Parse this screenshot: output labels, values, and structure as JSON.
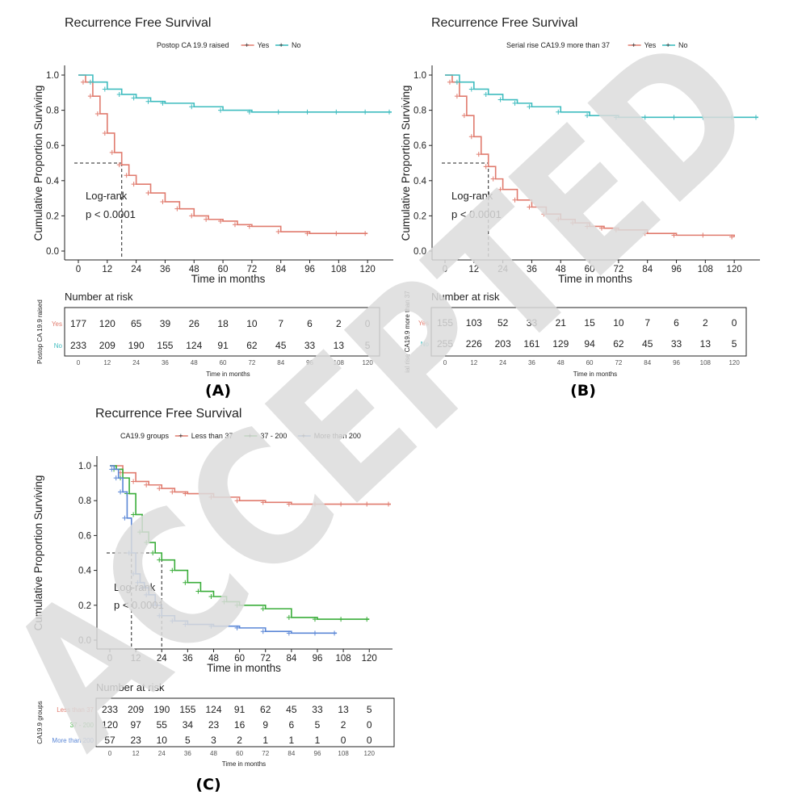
{
  "watermark": "ACCEPTED",
  "chart_data": [
    {
      "type": "line",
      "panel_label": "(A)",
      "title": "Recurrence Free Survival",
      "legend_title": "Postop CA 19.9 raised",
      "xlabel": "Time in months",
      "ylabel": "Cumulative Proportion Surviving",
      "xlim": [
        0,
        130
      ],
      "ylim": [
        0,
        1.0
      ],
      "xticks": [
        0,
        12,
        24,
        36,
        48,
        60,
        72,
        84,
        96,
        108,
        120
      ],
      "yticks": [
        "0.0",
        "0.2",
        "0.4",
        "0.6",
        "0.8",
        "1.0"
      ],
      "annotation": [
        "Log-rank",
        "p < 0.0001"
      ],
      "median_lines": [
        {
          "x": 18,
          "y": 0.5
        }
      ],
      "series": [
        {
          "name": "Yes",
          "color": "#e07b6e",
          "x": [
            0,
            3,
            6,
            9,
            12,
            15,
            18,
            21,
            24,
            30,
            36,
            42,
            48,
            54,
            60,
            66,
            72,
            84,
            96,
            108,
            120
          ],
          "y": [
            1.0,
            0.96,
            0.88,
            0.78,
            0.67,
            0.56,
            0.49,
            0.43,
            0.38,
            0.33,
            0.28,
            0.24,
            0.2,
            0.18,
            0.17,
            0.15,
            0.14,
            0.11,
            0.1,
            0.1,
            0.1
          ]
        },
        {
          "name": "No",
          "color": "#3fbcbf",
          "x": [
            0,
            6,
            12,
            18,
            24,
            30,
            36,
            48,
            60,
            72,
            84,
            96,
            108,
            120,
            130
          ],
          "y": [
            1.0,
            0.96,
            0.92,
            0.89,
            0.87,
            0.85,
            0.84,
            0.82,
            0.8,
            0.79,
            0.79,
            0.79,
            0.79,
            0.79,
            0.79
          ]
        }
      ],
      "risk_table": {
        "header": "Number at risk",
        "ylabel": "Postop CA 19.9 raised",
        "xlabel": "Time in months",
        "rows": [
          {
            "label": "Yes",
            "color": "#e07b6e",
            "values": [
              "177",
              "120",
              "65",
              "39",
              "26",
              "18",
              "10",
              "7",
              "6",
              "2",
              "0"
            ]
          },
          {
            "label": "No",
            "color": "#3fbcbf",
            "values": [
              "233",
              "209",
              "190",
              "155",
              "124",
              "91",
              "62",
              "45",
              "33",
              "13",
              "5"
            ]
          }
        ]
      }
    },
    {
      "type": "line",
      "panel_label": "(B)",
      "title": "Recurrence Free Survival",
      "legend_title": "Serial rise CA19.9 more than 37",
      "xlabel": "Time in months",
      "ylabel": "Cumulative Proportion Surviving",
      "xlim": [
        0,
        130
      ],
      "ylim": [
        0,
        1.0
      ],
      "xticks": [
        0,
        12,
        24,
        36,
        48,
        60,
        72,
        84,
        96,
        108,
        120
      ],
      "yticks": [
        "0.0",
        "0.2",
        "0.4",
        "0.6",
        "0.8",
        "1.0"
      ],
      "annotation": [
        "Log-rank",
        "p < 0.0001"
      ],
      "median_lines": [
        {
          "x": 18,
          "y": 0.5
        }
      ],
      "series": [
        {
          "name": "Yes",
          "color": "#e07b6e",
          "x": [
            0,
            3,
            6,
            9,
            12,
            15,
            18,
            21,
            24,
            30,
            36,
            42,
            48,
            54,
            60,
            66,
            72,
            84,
            96,
            108,
            120
          ],
          "y": [
            1.0,
            0.96,
            0.88,
            0.77,
            0.65,
            0.55,
            0.48,
            0.41,
            0.35,
            0.29,
            0.25,
            0.21,
            0.18,
            0.16,
            0.14,
            0.13,
            0.12,
            0.1,
            0.09,
            0.09,
            0.08
          ]
        },
        {
          "name": "No",
          "color": "#3fbcbf",
          "x": [
            0,
            6,
            12,
            18,
            24,
            30,
            36,
            48,
            60,
            72,
            84,
            96,
            108,
            120,
            130
          ],
          "y": [
            1.0,
            0.96,
            0.92,
            0.89,
            0.86,
            0.84,
            0.82,
            0.79,
            0.77,
            0.76,
            0.76,
            0.76,
            0.76,
            0.76,
            0.76
          ]
        }
      ],
      "risk_table": {
        "header": "Number at risk",
        "ylabel": "ial rise CA19.9 more than 37",
        "xlabel": "Time in months",
        "rows": [
          {
            "label": "Yes",
            "color": "#e07b6e",
            "values": [
              "155",
              "103",
              "52",
              "33",
              "21",
              "15",
              "10",
              "7",
              "6",
              "2",
              "0"
            ]
          },
          {
            "label": "No",
            "color": "#3fbcbf",
            "values": [
              "255",
              "226",
              "203",
              "161",
              "129",
              "94",
              "62",
              "45",
              "33",
              "13",
              "5"
            ]
          }
        ]
      }
    },
    {
      "type": "line",
      "panel_label": "(C)",
      "title": "Recurrence Free Survival",
      "legend_title": "CA19.9 groups",
      "xlabel": "Time in months",
      "ylabel": "Cumulative Proportion Surviving",
      "xlim": [
        0,
        130
      ],
      "ylim": [
        0,
        1.0
      ],
      "xticks": [
        0,
        12,
        24,
        36,
        48,
        60,
        72,
        84,
        96,
        108,
        120
      ],
      "yticks": [
        "0.0",
        "0.2",
        "0.4",
        "0.6",
        "0.8",
        "1.0"
      ],
      "annotation": [
        "Log-rank",
        "p < 0.0001"
      ],
      "median_lines": [
        {
          "x": 10,
          "y": 0.5
        },
        {
          "x": 24,
          "y": 0.5
        }
      ],
      "series": [
        {
          "name": "Less than 37",
          "color": "#e07b6e",
          "x": [
            0,
            6,
            12,
            18,
            24,
            30,
            36,
            48,
            60,
            72,
            84,
            96,
            108,
            120,
            130
          ],
          "y": [
            1.0,
            0.96,
            0.91,
            0.89,
            0.87,
            0.85,
            0.84,
            0.82,
            0.8,
            0.79,
            0.78,
            0.78,
            0.78,
            0.78,
            0.78
          ]
        },
        {
          "name": "37 - 200",
          "color": "#3aad3a",
          "x": [
            0,
            3,
            6,
            9,
            12,
            15,
            18,
            21,
            24,
            30,
            36,
            42,
            48,
            54,
            60,
            72,
            84,
            96,
            108,
            120
          ],
          "y": [
            1.0,
            0.98,
            0.93,
            0.84,
            0.72,
            0.62,
            0.56,
            0.5,
            0.46,
            0.4,
            0.33,
            0.28,
            0.25,
            0.22,
            0.2,
            0.18,
            0.13,
            0.12,
            0.12,
            0.12
          ]
        },
        {
          "name": "More than 200",
          "color": "#5b87d6",
          "x": [
            0,
            2,
            4,
            6,
            8,
            10,
            12,
            14,
            16,
            18,
            21,
            24,
            30,
            36,
            48,
            60,
            72,
            84,
            96,
            105
          ],
          "y": [
            1.0,
            0.98,
            0.93,
            0.85,
            0.7,
            0.5,
            0.38,
            0.33,
            0.3,
            0.26,
            0.2,
            0.14,
            0.11,
            0.09,
            0.08,
            0.07,
            0.05,
            0.04,
            0.04,
            0.04
          ]
        }
      ],
      "risk_table": {
        "header": "Number at risk",
        "ylabel": "CA19.9 groups",
        "xlabel": "Time in months",
        "rows": [
          {
            "label": "Less than 37",
            "color": "#e07b6e",
            "values": [
              "233",
              "209",
              "190",
              "155",
              "124",
              "91",
              "62",
              "45",
              "33",
              "13",
              "5"
            ]
          },
          {
            "label": "37 - 200",
            "color": "#3aad3a",
            "values": [
              "120",
              "97",
              "55",
              "34",
              "23",
              "16",
              "9",
              "6",
              "5",
              "2",
              "0"
            ]
          },
          {
            "label": "More than 200",
            "color": "#5b87d6",
            "values": [
              "57",
              "23",
              "10",
              "5",
              "3",
              "2",
              "1",
              "1",
              "1",
              "0",
              "0"
            ]
          }
        ]
      }
    }
  ]
}
